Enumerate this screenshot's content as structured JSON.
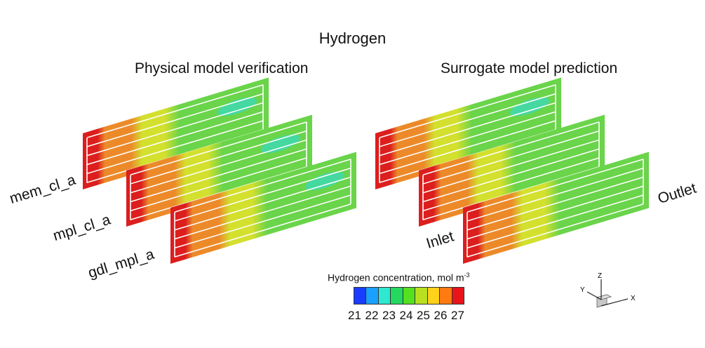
{
  "title": "Hydrogen",
  "panels": {
    "left_heading": "Physical model verification",
    "right_heading": "Surrogate model prediction"
  },
  "layer_labels": [
    "mem_cl_a",
    "mpl_cl_a",
    "gdl_mpl_a"
  ],
  "flow_labels": {
    "inlet": "Inlet",
    "outlet": "Outlet"
  },
  "legend": {
    "title_prefix": "Hydrogen concentration, mol m",
    "title_superscript": "-3",
    "ticks": [
      "21",
      "22",
      "23",
      "24",
      "25",
      "26",
      "27"
    ],
    "colors": [
      "#1a3cff",
      "#1aa0ff",
      "#2ee8d0",
      "#24d860",
      "#55e020",
      "#b8e020",
      "#ffd21a",
      "#ff7a10",
      "#e8141a"
    ]
  },
  "axis_triad": {
    "z": "Z",
    "y": "Y",
    "x": "X"
  },
  "field_colors": {
    "red": "#dc1e1e",
    "orange": "#ec8a2a",
    "yellow": "#d3e02e",
    "green": "#6ad44a",
    "teal": "#3ed8b0"
  }
}
